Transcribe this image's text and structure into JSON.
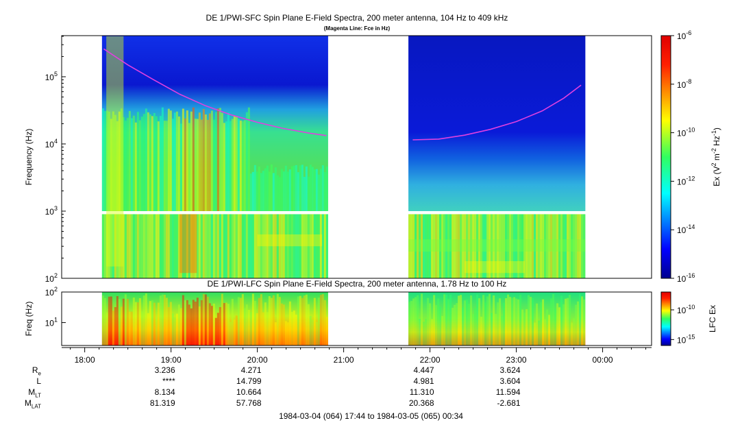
{
  "chart_data": [
    {
      "type": "heatmap",
      "title": "DE 1/PWI-SFC  Spin Plane E-Field Spectra, 200 meter antenna, 104 Hz to 409 kHz",
      "subtitle": "(Magenta Line: Fce in Hz)",
      "ylabel": "Frequency (Hz)",
      "yscale": "log",
      "ylim": [
        100,
        409000
      ],
      "yticks": [
        {
          "value": 100,
          "base": "10",
          "exp": "2"
        },
        {
          "value": 1000,
          "base": "10",
          "exp": "3"
        },
        {
          "value": 10000,
          "base": "10",
          "exp": "4"
        },
        {
          "value": 100000,
          "base": "10",
          "exp": "5"
        }
      ],
      "colorbar": {
        "label_base": "Ex (V",
        "label_parts": [
          "Ex (V",
          "2",
          " m",
          "-2",
          " Hz",
          "-1",
          ")"
        ],
        "scale": "log",
        "range": [
          1e-16,
          1e-06
        ],
        "ticks": [
          {
            "value": 1e-06,
            "base": "10",
            "exp": "-6"
          },
          {
            "value": 1e-08,
            "base": "10",
            "exp": "-8"
          },
          {
            "value": 1e-10,
            "base": "10",
            "exp": "-10"
          },
          {
            "value": 1e-12,
            "base": "10",
            "exp": "-12"
          },
          {
            "value": 1e-14,
            "base": "10",
            "exp": "-14"
          },
          {
            "value": 1e-16,
            "base": "10",
            "exp": "-16"
          }
        ]
      },
      "data_intervals_hours": [
        [
          18.2,
          20.82
        ],
        [
          21.75,
          23.8
        ]
      ],
      "fce_line": {
        "color": "#e040e0",
        "segments": [
          {
            "x": [
              18.22,
              18.5,
              18.8,
              19.1,
              19.4,
              19.7,
              20.0,
              20.3,
              20.6,
              20.8
            ],
            "y": [
              260000,
              150000,
              90000,
              55000,
              37000,
              27000,
              21000,
              17000,
              14500,
              13300
            ]
          },
          {
            "x": [
              21.8,
              22.1,
              22.4,
              22.7,
              23.0,
              23.3,
              23.55,
              23.75
            ],
            "y": [
              11500,
              11800,
              13500,
              16500,
              21500,
              31000,
              48000,
              75000
            ]
          }
        ]
      }
    },
    {
      "type": "heatmap",
      "title": "DE 1/PWI-LFC  Spin Plane E-Field Spectra, 200 meter antenna, 1.78 Hz to 100 Hz",
      "ylabel": "Freq (Hz)",
      "yscale": "log",
      "ylim": [
        1.78,
        100
      ],
      "yticks": [
        {
          "value": 10,
          "base": "10",
          "exp": "1"
        },
        {
          "value": 100,
          "base": "10",
          "exp": "2"
        }
      ],
      "colorbar": {
        "label": "LFC Ex",
        "scale": "log",
        "range": [
          1e-16,
          1e-07
        ],
        "ticks": [
          {
            "value": 1e-10,
            "base": "10",
            "exp": "-10"
          },
          {
            "value": 1e-15,
            "base": "10",
            "exp": "-15"
          }
        ]
      },
      "data_intervals_hours": [
        [
          18.2,
          20.82
        ],
        [
          21.75,
          23.8
        ]
      ]
    }
  ],
  "time_axis": {
    "range_hours": [
      17.733,
      24.567
    ],
    "ticks": [
      {
        "value": 18,
        "label": "18:00"
      },
      {
        "value": 19,
        "label": "19:00"
      },
      {
        "value": 20,
        "label": "20:00"
      },
      {
        "value": 21,
        "label": "21:00"
      },
      {
        "value": 22,
        "label": "22:00"
      },
      {
        "value": 23,
        "label": "23:00"
      },
      {
        "value": 24,
        "label": "00:00"
      }
    ]
  },
  "ephemeris": {
    "labels": {
      "re": {
        "main": "R",
        "sub": "e"
      },
      "l": {
        "main": "L",
        "sub": ""
      },
      "mlt": {
        "main": "M",
        "sub": "LT"
      },
      "mlat": {
        "main": "M",
        "sub": "LAT"
      }
    },
    "columns": [
      {
        "hour": 19,
        "re": "3.236",
        "l": "****",
        "mlt": "8.134",
        "mlat": "81.319"
      },
      {
        "hour": 20,
        "re": "4.271",
        "l": "14.799",
        "mlt": "10.664",
        "mlat": "57.768"
      },
      {
        "hour": 22,
        "re": "4.447",
        "l": "4.981",
        "mlt": "11.310",
        "mlat": "20.368"
      },
      {
        "hour": 23,
        "re": "3.624",
        "l": "3.604",
        "mlt": "11.594",
        "mlat": "-2.681"
      }
    ]
  },
  "footer": "1984-03-04 (064) 17:44 to 1984-03-05 (065) 00:34"
}
